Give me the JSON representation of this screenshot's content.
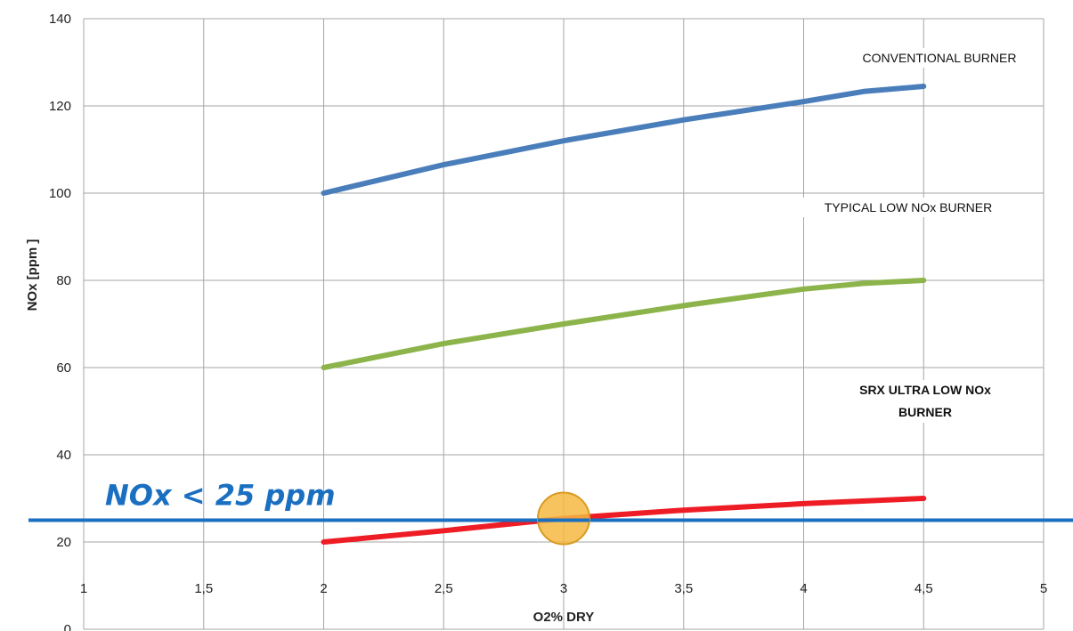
{
  "chart_data": {
    "type": "line",
    "xlabel": "O2% DRY",
    "ylabel": "NOx  [ppm ]",
    "xlim": [
      1,
      5
    ],
    "ylim": [
      0,
      140
    ],
    "x_ticks": [
      1,
      1.5,
      2,
      2.5,
      3,
      3.5,
      4,
      4.5,
      5
    ],
    "x_tick_labels": [
      "1",
      "1,5",
      "2",
      "2,5",
      "3",
      "3,5",
      "4",
      "4,5",
      "5"
    ],
    "y_ticks": [
      0,
      20,
      40,
      60,
      80,
      100,
      120,
      140
    ],
    "y_tick_labels": [
      "0",
      "20",
      "40",
      "60",
      "80",
      "100",
      "120",
      "140"
    ],
    "grid": true,
    "series": [
      {
        "name": "CONVENTIONAL BURNER",
        "color": "#4a7ebb",
        "x": [
          2,
          2.5,
          3,
          3.5,
          4,
          4.25,
          4.5
        ],
        "y": [
          100,
          106.5,
          112,
          116.8,
          121,
          123.3,
          124.5
        ]
      },
      {
        "name": "TYPICAL LOW NOx BURNER",
        "color": "#8cb44b",
        "x": [
          2,
          2.5,
          3,
          3.5,
          4,
          4.25,
          4.5
        ],
        "y": [
          60,
          65.5,
          70,
          74.2,
          78,
          79.3,
          80
        ]
      },
      {
        "name": "SRX ULTRA LOW NOx BURNER",
        "name_lines": [
          "SRX ULTRA LOW NOx",
          "BURNER"
        ],
        "color": "#ee1c25",
        "x": [
          2,
          2.5,
          3,
          3.5,
          4,
          4.5
        ],
        "y": [
          20,
          22.6,
          25.4,
          27.3,
          28.8,
          30
        ]
      }
    ],
    "threshold": {
      "value": 25,
      "label": "NOx < 25 ppm",
      "color": "#1a6fc0"
    },
    "highlight": {
      "x": 3,
      "y": 25.4,
      "color": "#f5b942",
      "edge_color": "#d99a20"
    }
  }
}
